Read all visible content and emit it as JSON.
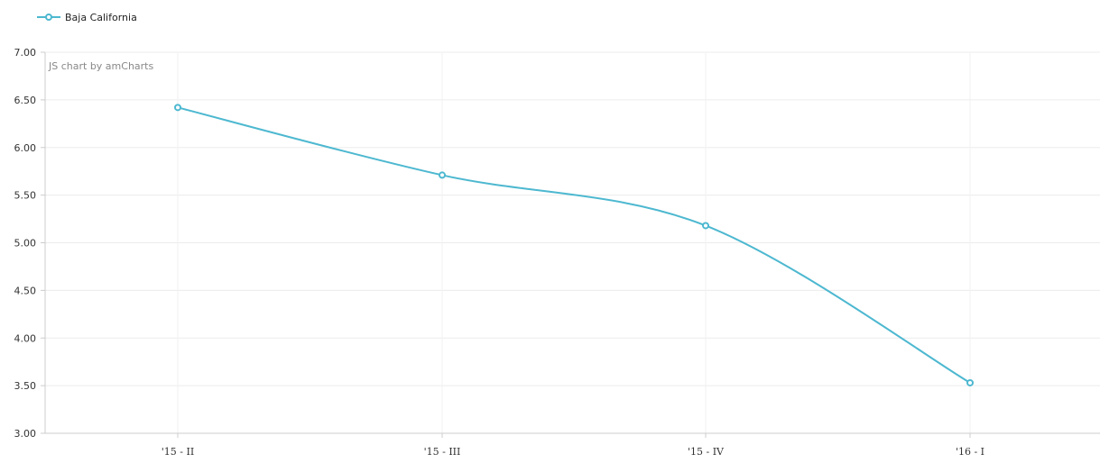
{
  "chart_data": {
    "type": "line",
    "categories": [
      "'15 - II",
      "'15 - III",
      "'15 - IV",
      "'16 - I"
    ],
    "series": [
      {
        "name": "Baja California",
        "values": [
          6.42,
          5.71,
          5.18,
          3.53
        ],
        "color": "#4db8d0"
      }
    ],
    "yticks": [
      "3.00",
      "3.50",
      "4.00",
      "4.50",
      "5.00",
      "5.50",
      "6.00",
      "6.50",
      "7.00"
    ],
    "ylim": [
      3.0,
      7.0
    ],
    "grid": true,
    "smoothed": true,
    "legend_position": "top-left",
    "credit": "JS chart by amCharts"
  }
}
